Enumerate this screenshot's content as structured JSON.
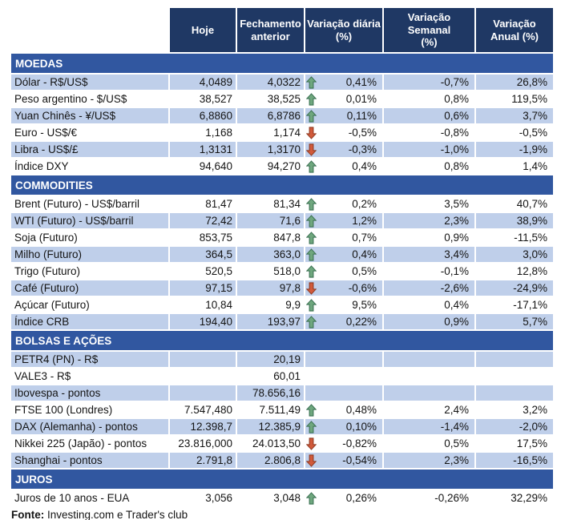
{
  "chart_data": {
    "type": "table",
    "columns": [
      "Hoje",
      "Fechamento\nanterior",
      "Variação diária\n(%)",
      "Variação Semanal\n(%)",
      "Variação\nAnual (%)"
    ],
    "sections": [
      {
        "title": "MOEDAS",
        "zebra_start": "light",
        "rows": [
          {
            "label": "Dólar - R$/US$",
            "hoje": "4,0489",
            "fechamento": "4,0322",
            "trend": "up",
            "diaria": "0,41%",
            "semanal": "-0,7%",
            "anual": "26,8%"
          },
          {
            "label": "Peso argentino - $/US$",
            "hoje": "38,527",
            "fechamento": "38,525",
            "trend": "up",
            "diaria": "0,01%",
            "semanal": "0,8%",
            "anual": "119,5%"
          },
          {
            "label": "Yuan Chinês - ¥/US$",
            "hoje": "6,8860",
            "fechamento": "6,8786",
            "trend": "up",
            "diaria": "0,11%",
            "semanal": "0,6%",
            "anual": "3,7%"
          },
          {
            "label": "Euro - US$/€",
            "hoje": "1,168",
            "fechamento": "1,174",
            "trend": "down",
            "diaria": "-0,5%",
            "semanal": "-0,8%",
            "anual": "-0,5%"
          },
          {
            "label": "Libra - US$/£",
            "hoje": "1,3131",
            "fechamento": "1,3170",
            "trend": "down",
            "diaria": "-0,3%",
            "semanal": "-1,0%",
            "anual": "-1,9%"
          },
          {
            "label": "Índice DXY",
            "hoje": "94,640",
            "fechamento": "94,270",
            "trend": "up",
            "diaria": "0,4%",
            "semanal": "0,8%",
            "anual": "1,4%"
          }
        ]
      },
      {
        "title": "COMMODITIES",
        "zebra_start": "white",
        "rows": [
          {
            "label": "Brent (Futuro) - US$/barril",
            "hoje": "81,47",
            "fechamento": "81,34",
            "trend": "up",
            "diaria": "0,2%",
            "semanal": "3,5%",
            "anual": "40,7%"
          },
          {
            "label": "WTI (Futuro) - US$/barril",
            "hoje": "72,42",
            "fechamento": "71,6",
            "trend": "up",
            "diaria": "1,2%",
            "semanal": "2,3%",
            "anual": "38,9%"
          },
          {
            "label": "Soja (Futuro)",
            "hoje": "853,75",
            "fechamento": "847,8",
            "trend": "up",
            "diaria": "0,7%",
            "semanal": "0,9%",
            "anual": "-11,5%"
          },
          {
            "label": "Milho (Futuro)",
            "hoje": "364,5",
            "fechamento": "363,0",
            "trend": "up",
            "diaria": "0,4%",
            "semanal": "3,4%",
            "anual": "3,0%"
          },
          {
            "label": "Trigo (Futuro)",
            "hoje": "520,5",
            "fechamento": "518,0",
            "trend": "up",
            "diaria": "0,5%",
            "semanal": "-0,1%",
            "anual": "12,8%"
          },
          {
            "label": "Café (Futuro)",
            "hoje": "97,15",
            "fechamento": "97,8",
            "trend": "down",
            "diaria": "-0,6%",
            "semanal": "-2,6%",
            "anual": "-24,9%"
          },
          {
            "label": "Açúcar (Futuro)",
            "hoje": "10,84",
            "fechamento": "9,9",
            "trend": "up",
            "diaria": "9,5%",
            "semanal": "0,4%",
            "anual": "-17,1%"
          },
          {
            "label": "Índice CRB",
            "hoje": "194,40",
            "fechamento": "193,97",
            "trend": "up",
            "diaria": "0,22%",
            "semanal": "0,9%",
            "anual": "5,7%"
          }
        ]
      },
      {
        "title": "BOLSAS E AÇÕES",
        "zebra_start": "light",
        "rows": [
          {
            "label": "PETR4 (PN) - R$",
            "hoje": "",
            "fechamento": "20,19",
            "trend": null,
            "diaria": "",
            "semanal": "",
            "anual": ""
          },
          {
            "label": "VALE3 - R$",
            "hoje": "",
            "fechamento": "60,01",
            "trend": null,
            "diaria": "",
            "semanal": "",
            "anual": ""
          },
          {
            "label": "Ibovespa - pontos",
            "hoje": "",
            "fechamento": "78.656,16",
            "trend": null,
            "diaria": "",
            "semanal": "",
            "anual": ""
          },
          {
            "label": "FTSE 100 (Londres)",
            "hoje": "7.547,480",
            "fechamento": "7.511,49",
            "trend": "up",
            "diaria": "0,48%",
            "semanal": "2,4%",
            "anual": "3,2%"
          },
          {
            "label": "DAX (Alemanha) - pontos",
            "hoje": "12.398,7",
            "fechamento": "12.385,9",
            "trend": "up",
            "diaria": "0,10%",
            "semanal": "-1,4%",
            "anual": "-2,0%"
          },
          {
            "label": "Nikkei 225 (Japão) - pontos",
            "hoje": "23.816,000",
            "fechamento": "24.013,50",
            "trend": "down",
            "diaria": "-0,82%",
            "semanal": "0,5%",
            "anual": "17,5%"
          },
          {
            "label": "Shanghai - pontos",
            "hoje": "2.791,8",
            "fechamento": "2.806,8",
            "trend": "down",
            "diaria": "-0,54%",
            "semanal": "2,3%",
            "anual": "-16,5%"
          }
        ]
      },
      {
        "title": "JUROS",
        "zebra_start": "white",
        "rows": [
          {
            "label": "Juros de 10 anos - EUA",
            "hoje": "3,056",
            "fechamento": "3,048",
            "trend": "up",
            "diaria": "0,26%",
            "semanal": "-0,26%",
            "anual": "32,29%"
          }
        ]
      }
    ]
  },
  "footer": {
    "label": "Fonte:",
    "text": " Investing.com e Trader's club"
  },
  "colors": {
    "header_bg": "#1F3864",
    "section_bg": "#3157A0",
    "row_light": "#BFCFEA",
    "up_arrow_fill": "#6FA77E",
    "up_arrow_border": "#3A7052",
    "down_arrow_fill": "#D15A3B",
    "down_arrow_border": "#8F3A22"
  }
}
